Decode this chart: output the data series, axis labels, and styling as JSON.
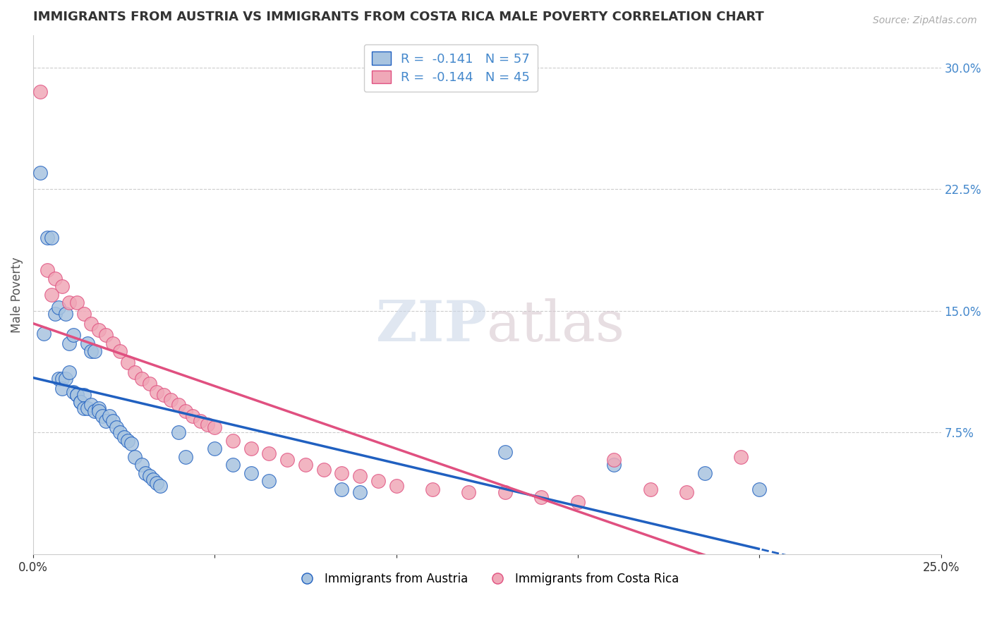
{
  "title": "IMMIGRANTS FROM AUSTRIA VS IMMIGRANTS FROM COSTA RICA MALE POVERTY CORRELATION CHART",
  "source": "Source: ZipAtlas.com",
  "ylabel": "Male Poverty",
  "xlim": [
    0,
    0.25
  ],
  "ylim": [
    0,
    0.32
  ],
  "yticks_right": [
    0.075,
    0.15,
    0.225,
    0.3
  ],
  "ytick_labels_right": [
    "7.5%",
    "15.0%",
    "22.5%",
    "30.0%"
  ],
  "xticks": [
    0.0,
    0.05,
    0.1,
    0.15,
    0.2,
    0.25
  ],
  "xtick_labels": [
    "0.0%",
    "",
    "",
    "",
    "",
    "25.0%"
  ],
  "legend_r1": "R =  -0.141   N = 57",
  "legend_r2": "R =  -0.144   N = 45",
  "color_austria": "#a8c4e0",
  "color_costarica": "#f0a8b8",
  "color_line_austria": "#2060c0",
  "color_line_costarica": "#e05080",
  "color_axis_right": "#4488cc",
  "austria_x": [
    0.002,
    0.004,
    0.005,
    0.006,
    0.007,
    0.007,
    0.008,
    0.008,
    0.009,
    0.009,
    0.01,
    0.01,
    0.011,
    0.011,
    0.012,
    0.012,
    0.013,
    0.013,
    0.014,
    0.014,
    0.015,
    0.015,
    0.016,
    0.016,
    0.017,
    0.017,
    0.018,
    0.018,
    0.019,
    0.02,
    0.021,
    0.022,
    0.023,
    0.024,
    0.025,
    0.026,
    0.027,
    0.028,
    0.03,
    0.031,
    0.032,
    0.033,
    0.034,
    0.035,
    0.04,
    0.042,
    0.05,
    0.055,
    0.06,
    0.065,
    0.085,
    0.09,
    0.13,
    0.16,
    0.185,
    0.2,
    0.003
  ],
  "austria_y": [
    0.235,
    0.195,
    0.195,
    0.148,
    0.152,
    0.108,
    0.108,
    0.102,
    0.148,
    0.108,
    0.112,
    0.13,
    0.135,
    0.1,
    0.098,
    0.098,
    0.094,
    0.094,
    0.098,
    0.09,
    0.09,
    0.13,
    0.125,
    0.092,
    0.125,
    0.088,
    0.09,
    0.088,
    0.085,
    0.082,
    0.085,
    0.082,
    0.078,
    0.075,
    0.072,
    0.07,
    0.068,
    0.06,
    0.055,
    0.05,
    0.048,
    0.046,
    0.044,
    0.042,
    0.075,
    0.06,
    0.065,
    0.055,
    0.05,
    0.045,
    0.04,
    0.038,
    0.063,
    0.055,
    0.05,
    0.04,
    0.136
  ],
  "costarica_x": [
    0.002,
    0.004,
    0.006,
    0.008,
    0.01,
    0.012,
    0.014,
    0.016,
    0.018,
    0.02,
    0.022,
    0.024,
    0.026,
    0.028,
    0.03,
    0.032,
    0.034,
    0.036,
    0.038,
    0.04,
    0.042,
    0.044,
    0.046,
    0.048,
    0.05,
    0.055,
    0.06,
    0.065,
    0.07,
    0.075,
    0.08,
    0.085,
    0.09,
    0.095,
    0.1,
    0.11,
    0.12,
    0.13,
    0.14,
    0.15,
    0.16,
    0.17,
    0.18,
    0.195,
    0.005
  ],
  "costarica_y": [
    0.285,
    0.175,
    0.17,
    0.165,
    0.155,
    0.155,
    0.148,
    0.142,
    0.138,
    0.135,
    0.13,
    0.125,
    0.118,
    0.112,
    0.108,
    0.105,
    0.1,
    0.098,
    0.095,
    0.092,
    0.088,
    0.085,
    0.082,
    0.08,
    0.078,
    0.07,
    0.065,
    0.062,
    0.058,
    0.055,
    0.052,
    0.05,
    0.048,
    0.045,
    0.042,
    0.04,
    0.038,
    0.038,
    0.035,
    0.032,
    0.058,
    0.04,
    0.038,
    0.06,
    0.16
  ],
  "watermark_zip": "ZIP",
  "watermark_atlas": "atlas",
  "background_color": "#ffffff",
  "grid_color": "#cccccc"
}
